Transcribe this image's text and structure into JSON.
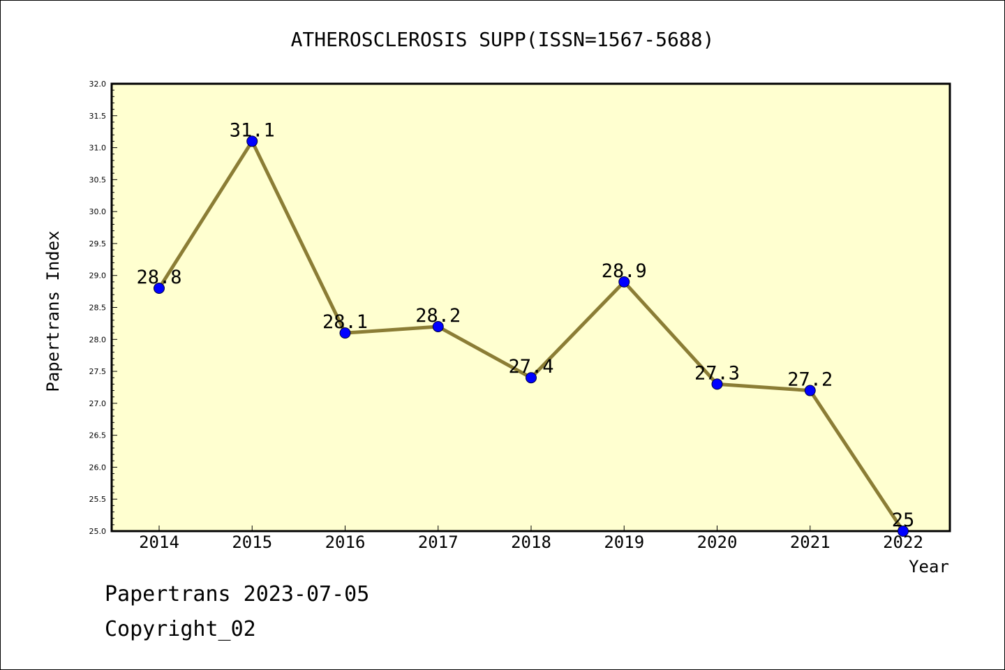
{
  "chart_data": {
    "type": "line",
    "title": "ATHEROSCLEROSIS SUPP(ISSN=1567-5688)",
    "xlabel": "Year",
    "ylabel": "Papertrans Index",
    "categories": [
      "2014",
      "2015",
      "2016",
      "2017",
      "2018",
      "2019",
      "2020",
      "2021",
      "2022"
    ],
    "values": [
      28.8,
      31.1,
      28.1,
      28.2,
      27.4,
      28.9,
      27.3,
      27.2,
      25
    ],
    "data_labels": [
      "28.8",
      "31.1",
      "28.1",
      "28.2",
      "27.4",
      "28.9",
      "27.3",
      "27.2",
      "25"
    ],
    "ylim": [
      25.0,
      32.0
    ],
    "yticks": [
      "25.0",
      "25.5",
      "26.0",
      "26.5",
      "27.0",
      "27.5",
      "28.0",
      "28.5",
      "29.0",
      "29.5",
      "30.0",
      "30.5",
      "31.0",
      "31.5",
      "32.0"
    ],
    "grid": false,
    "colors": {
      "plot_background": "#ffffd0",
      "line": "#8b7d35",
      "marker": "#0000ff"
    }
  },
  "footer": {
    "line1": "Papertrans 2023-07-05",
    "line2": "Copyright_02"
  }
}
